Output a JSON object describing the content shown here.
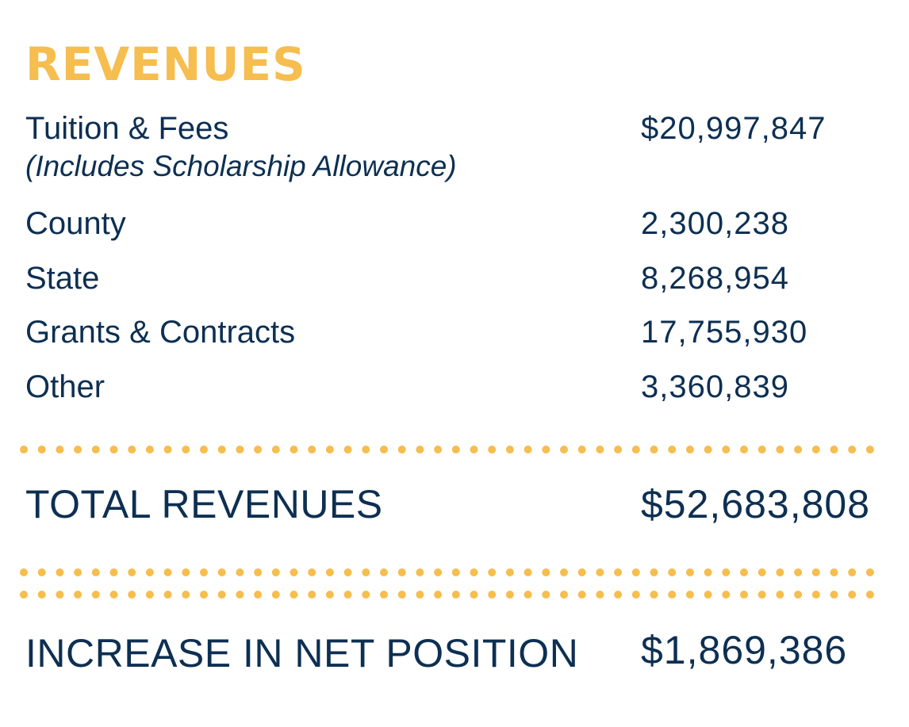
{
  "heading": "REVENUES",
  "rows": [
    {
      "label": "Tuition & Fees",
      "note": "(Includes Scholarship Allowance)",
      "value": "$20,997,847"
    },
    {
      "label": "County",
      "value": "2,300,238"
    },
    {
      "label": "State",
      "value": "8,268,954"
    },
    {
      "label": "Grants & Contracts",
      "value": "17,755,930"
    },
    {
      "label": "Other",
      "value": "3,360,839"
    }
  ],
  "total": {
    "label": "TOTAL REVENUES",
    "value": "$52,683,808"
  },
  "net_position": {
    "label": "INCREASE IN NET POSITION",
    "value": "$1,869,386"
  },
  "colors": {
    "accent": "#f6bd4f",
    "text": "#0d2f52",
    "background": "#ffffff"
  }
}
